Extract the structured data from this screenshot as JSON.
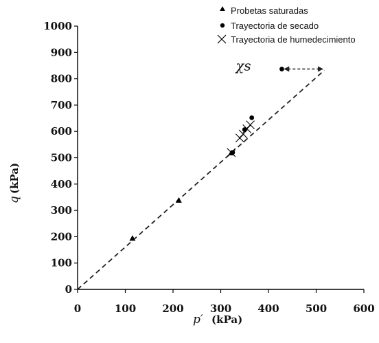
{
  "chart_data": {
    "type": "scatter",
    "xlabel": {
      "symbol": "p′",
      "unit": "(kPa)"
    },
    "ylabel": {
      "symbol": "q",
      "unit": "(kPa)"
    },
    "xlim": [
      0,
      600
    ],
    "ylim": [
      0,
      1000
    ],
    "xticks": [
      "0",
      "100",
      "200",
      "300",
      "400",
      "500",
      "600"
    ],
    "yticks": [
      "0",
      "100",
      "200",
      "300",
      "400",
      "500",
      "600",
      "700",
      "800",
      "900",
      "1000"
    ],
    "grid": false,
    "legend_position": "top-right",
    "series": [
      {
        "name": "Probetas saturadas",
        "marker": "triangle",
        "points": [
          [
            115,
            193
          ],
          [
            212,
            337
          ],
          [
            322,
            517
          ]
        ]
      },
      {
        "name": "Trayectoria de secado",
        "marker": "circle",
        "points": [
          [
            325,
            520
          ],
          [
            350,
            607
          ],
          [
            365,
            652
          ],
          [
            428,
            837
          ]
        ]
      },
      {
        "name": "Trayectoria de humedecimiento",
        "marker": "x",
        "points": [
          [
            322,
            520
          ],
          [
            340,
            575
          ],
          [
            347,
            590
          ],
          [
            355,
            610
          ],
          [
            362,
            625
          ]
        ]
      }
    ],
    "line": {
      "style": "dashed",
      "from": [
        0,
        0
      ],
      "to": [
        517,
        832
      ]
    },
    "annotation": {
      "text": "χs",
      "arrow_from": [
        432,
        837
      ],
      "arrow_to": [
        515,
        837
      ]
    }
  }
}
